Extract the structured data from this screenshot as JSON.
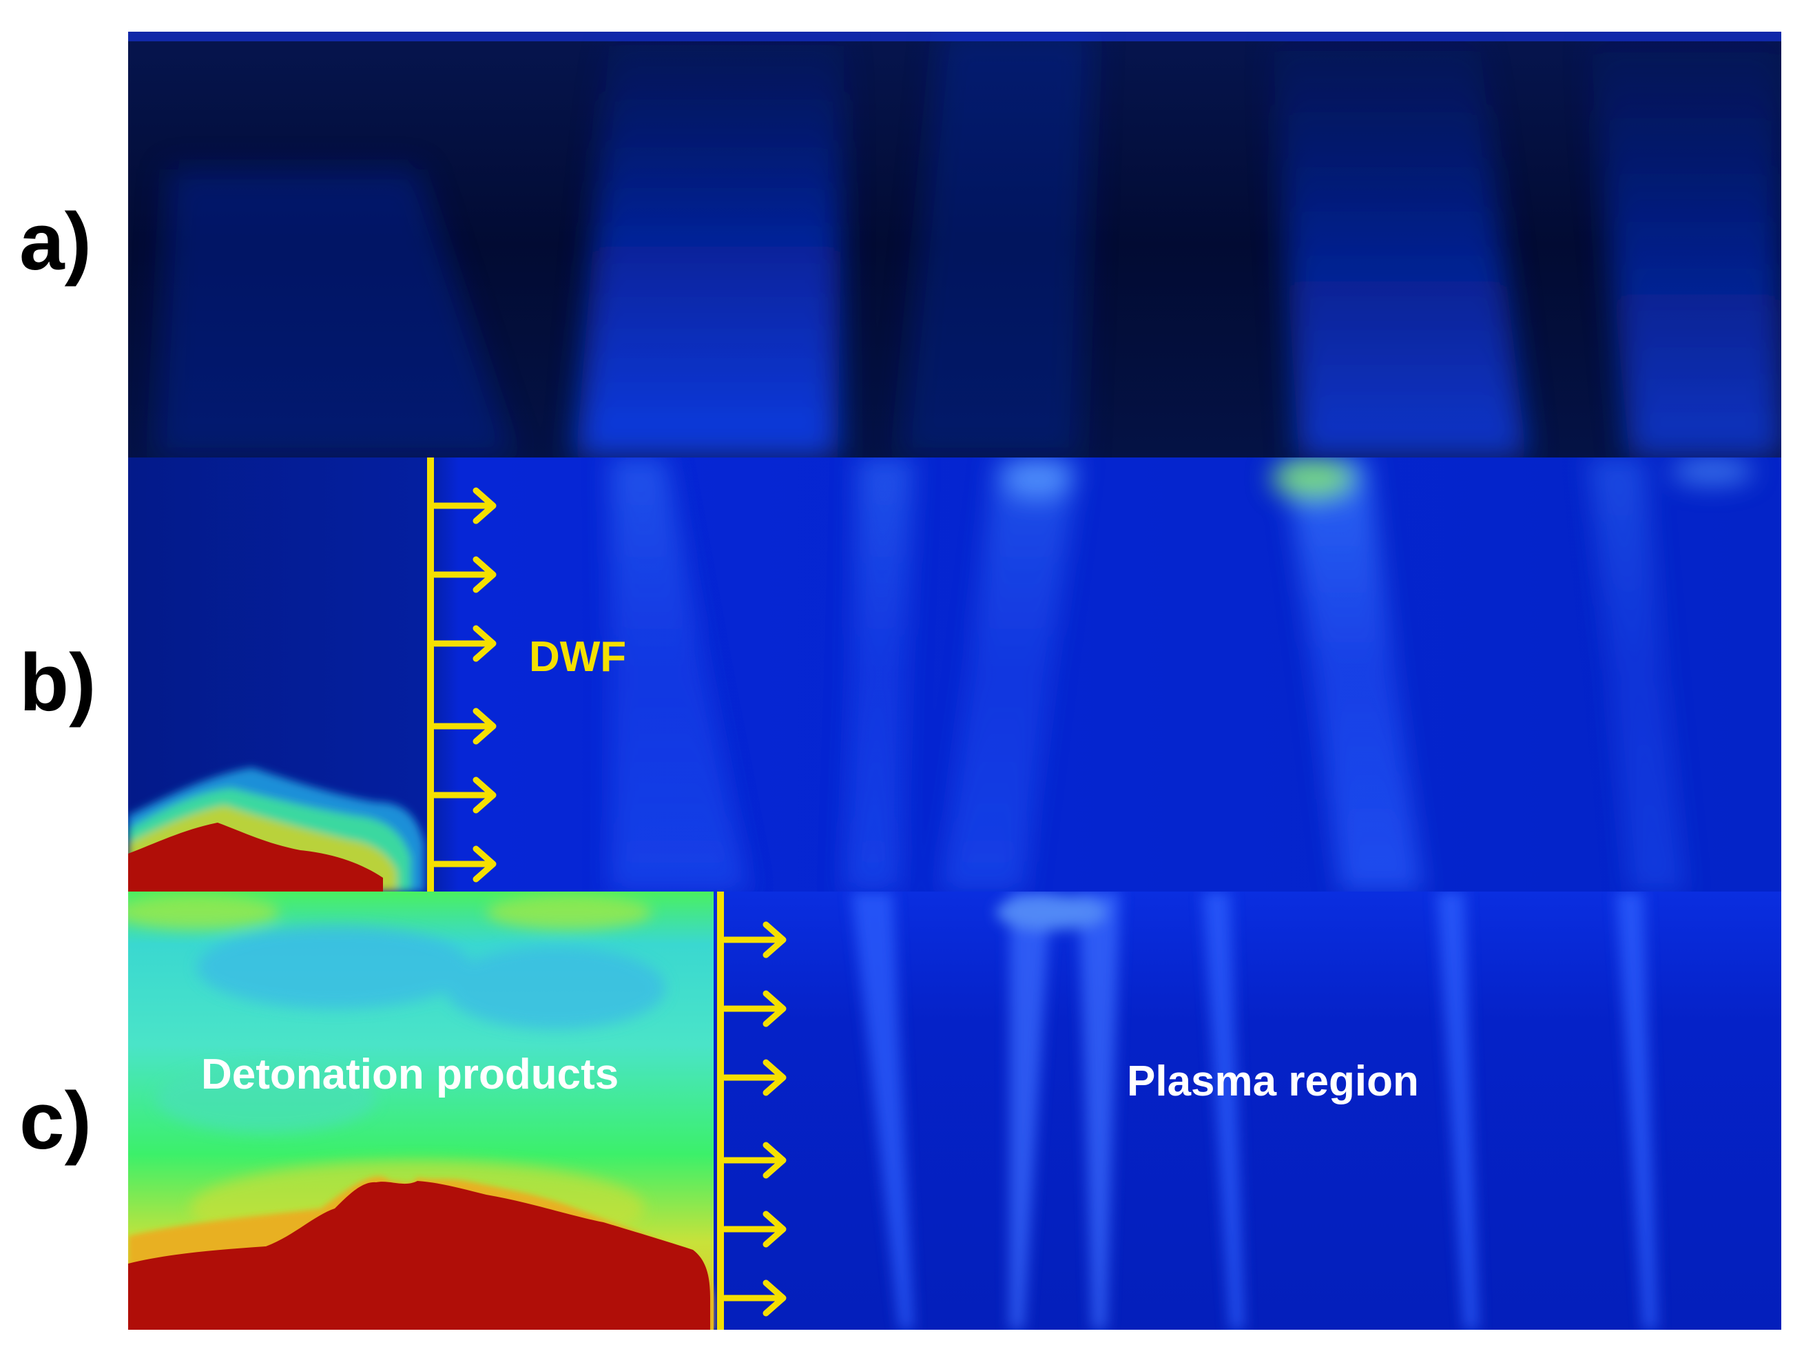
{
  "figure": {
    "panels": [
      {
        "label": "a)",
        "description_words": []
      },
      {
        "label": "b)",
        "annotation": "DWF"
      },
      {
        "label": "c)",
        "annotation_left": "Detonation products",
        "annotation_right": "Plasma region"
      }
    ]
  },
  "colors": {
    "background_dark": "#000a3a",
    "plasma_blue": "#0a2fe0",
    "bright_blue": "#2a5cff",
    "front_yellow": "#f5e000",
    "products_green": "#3cf06a",
    "products_cyan": "#3ad8d0",
    "core_red": "#b00e08",
    "label_text": "#ffffff"
  }
}
